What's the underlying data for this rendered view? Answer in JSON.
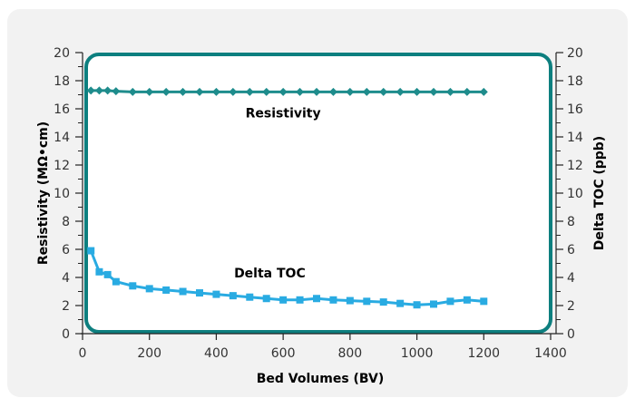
{
  "chart_data": {
    "type": "line",
    "xlabel": "Bed Volumes (BV)",
    "ylabel": "Resistivity (MΩ•cm)",
    "y2label": "Delta TOC (ppb)",
    "xlim": [
      0,
      1400
    ],
    "ylim": [
      0,
      20
    ],
    "y2lim": [
      0,
      20
    ],
    "x_ticks": [
      0,
      200,
      400,
      600,
      800,
      1000,
      1200,
      1400
    ],
    "y_ticks": [
      0,
      2,
      4,
      6,
      8,
      10,
      12,
      14,
      16,
      18,
      20
    ],
    "y2_ticks": [
      0,
      2,
      4,
      6,
      8,
      10,
      12,
      14,
      16,
      18,
      20
    ],
    "grid": false,
    "legend": "none",
    "annotations": [
      "Resistivity",
      "Delta TOC"
    ],
    "series": [
      {
        "label_text": "Resistivity",
        "axis": "left",
        "marker": "diamond",
        "color": "#1e8c8c",
        "x": [
          25,
          50,
          75,
          100,
          150,
          200,
          250,
          300,
          350,
          400,
          450,
          500,
          550,
          600,
          650,
          700,
          750,
          800,
          850,
          900,
          950,
          1000,
          1050,
          1100,
          1150,
          1200
        ],
        "y": [
          17.3,
          17.3,
          17.3,
          17.25,
          17.2,
          17.2,
          17.2,
          17.2,
          17.2,
          17.2,
          17.2,
          17.2,
          17.2,
          17.2,
          17.2,
          17.2,
          17.2,
          17.2,
          17.2,
          17.2,
          17.2,
          17.2,
          17.2,
          17.2,
          17.2,
          17.2
        ]
      },
      {
        "label_text": "Delta TOC",
        "axis": "right",
        "marker": "square",
        "color": "#29abe2",
        "x": [
          25,
          50,
          75,
          100,
          150,
          200,
          250,
          300,
          350,
          400,
          450,
          500,
          550,
          600,
          650,
          700,
          750,
          800,
          850,
          900,
          950,
          1000,
          1050,
          1100,
          1150,
          1200
        ],
        "y": [
          5.9,
          4.4,
          4.2,
          3.7,
          3.4,
          3.2,
          3.1,
          3.0,
          2.9,
          2.8,
          2.7,
          2.6,
          2.5,
          2.4,
          2.4,
          2.5,
          2.4,
          2.35,
          2.3,
          2.25,
          2.15,
          2.05,
          2.1,
          2.3,
          2.4,
          2.3
        ]
      }
    ]
  },
  "colors": {
    "panel_border": "#0d7f7f",
    "card_background": "#f2f2f2"
  }
}
